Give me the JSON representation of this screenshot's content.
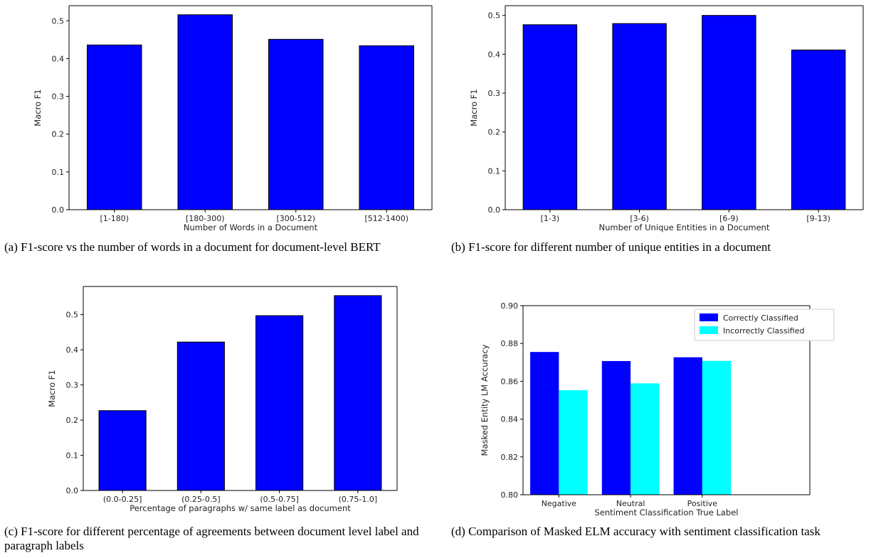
{
  "colors": {
    "bar_primary": "#0000ff",
    "bar_secondary": "#00ffff",
    "edge": "#000000"
  },
  "panels": [
    {
      "caption": "(a) F1-score vs the number of words in a document for document-level BERT",
      "chart_data": {
        "type": "bar",
        "categories": [
          "[1-180)",
          "[180-300)",
          "[300-512)",
          "[512-1400)"
        ],
        "series": [
          {
            "values": [
              0.436,
              0.516,
              0.451,
              0.434
            ]
          }
        ],
        "xlabel": "Number of Words in a Document",
        "ylabel": "Macro F1",
        "ylim": [
          0,
          0.54
        ],
        "yticks": [
          "0.0",
          "0.1",
          "0.2",
          "0.3",
          "0.4",
          "0.5"
        ],
        "grid": false,
        "legend": "none"
      }
    },
    {
      "caption": "(b) F1-score for different number of unique entities in a document",
      "chart_data": {
        "type": "bar",
        "categories": [
          "[1-3)",
          "[3-6)",
          "[6-9)",
          "[9-13)"
        ],
        "series": [
          {
            "values": [
              0.476,
              0.479,
              0.5,
              0.411
            ]
          }
        ],
        "xlabel": "Number of Unique Entities in a Document",
        "ylabel": "Macro F1",
        "ylim": [
          0,
          0.525
        ],
        "yticks": [
          "0.0",
          "0.1",
          "0.2",
          "0.3",
          "0.4",
          "0.5"
        ],
        "grid": false,
        "legend": "none"
      }
    },
    {
      "caption": "(c) F1-score for different percentage of agreements between document level label and paragraph labels",
      "chart_data": {
        "type": "bar",
        "categories": [
          "(0.0-0.25]",
          "(0.25-0.5]",
          "(0.5-0.75]",
          "(0.75-1.0]"
        ],
        "series": [
          {
            "values": [
              0.227,
              0.422,
              0.497,
              0.554
            ]
          }
        ],
        "xlabel": "Percentage of paragraphs w/ same label as document",
        "ylabel": "Macro F1",
        "ylim": [
          0,
          0.58
        ],
        "yticks": [
          "0.0",
          "0.1",
          "0.2",
          "0.3",
          "0.4",
          "0.5"
        ],
        "grid": false,
        "legend": "none"
      }
    },
    {
      "caption": "(d) Comparison of Masked ELM accuracy with sentiment classification task",
      "chart_data": {
        "type": "bar",
        "categories": [
          "Negative",
          "Neutral",
          "Positive"
        ],
        "series": [
          {
            "name": "Correctly Classified",
            "values": [
              0.8755,
              0.8707,
              0.8727
            ]
          },
          {
            "name": "Incorrectly Classified",
            "values": [
              0.8553,
              0.8589,
              0.8708
            ]
          }
        ],
        "xlabel": "Sentiment Classification True Label",
        "ylabel": "Masked Entity LM Accuracy",
        "ylim": [
          0.8,
          0.9
        ],
        "yticks": [
          "0.80",
          "0.82",
          "0.84",
          "0.86",
          "0.88",
          "0.90"
        ],
        "grid": false,
        "legend": "top-right"
      }
    }
  ]
}
